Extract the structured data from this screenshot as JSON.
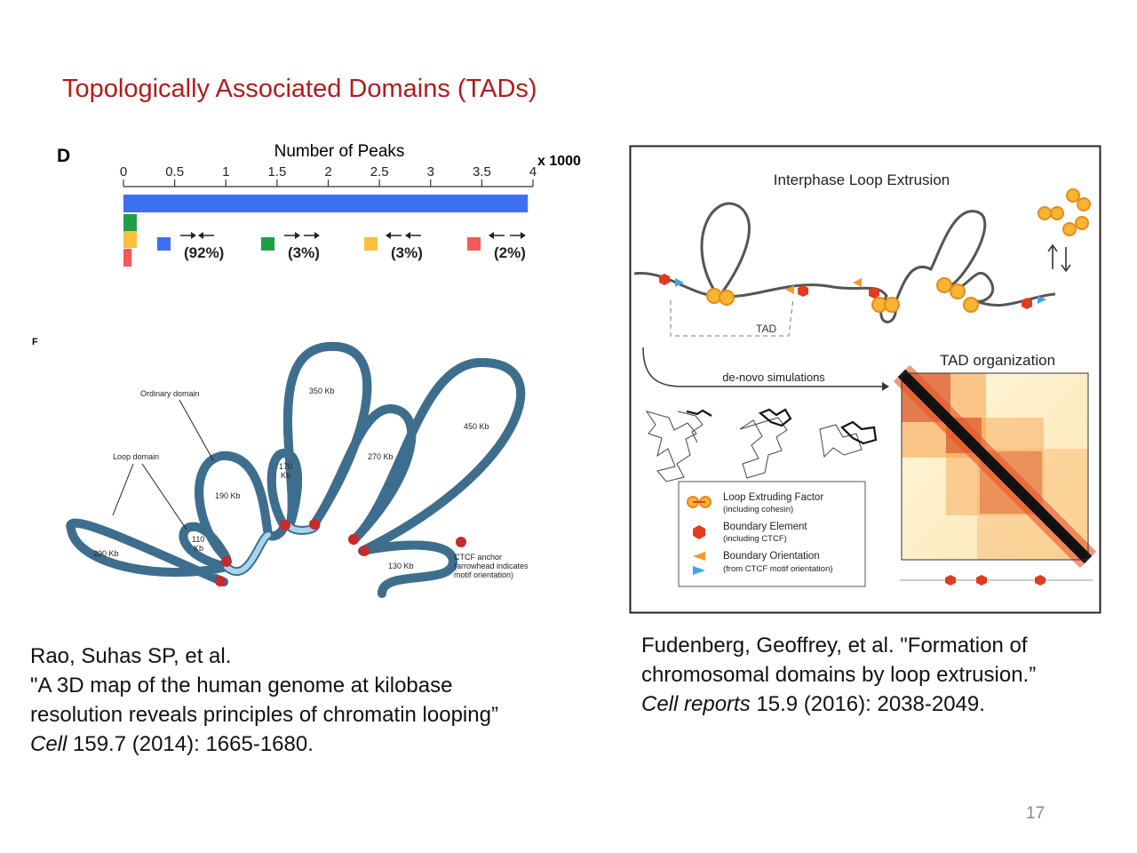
{
  "slide": {
    "title": "Topologically Associated Domains (TADs)",
    "page_number": "17"
  },
  "figure_d": {
    "panel_label": "D",
    "axis_title": "Number of Peaks",
    "axis_unit": "x 1000",
    "ticks": [
      "0",
      "0.5",
      "1",
      "1.5",
      "2",
      "2.5",
      "3",
      "3.5",
      "4"
    ],
    "legend": [
      {
        "percent": "(92%)",
        "color": "#3e6ff0"
      },
      {
        "percent": "(3%)",
        "color": "#1f9e4a"
      },
      {
        "percent": "(3%)",
        "color": "#fbbf3b"
      },
      {
        "percent": "(2%)",
        "color": "#f05a5a"
      }
    ]
  },
  "chart_data": {
    "type": "bar",
    "title": "Number of Peaks",
    "xlabel": "x 1000",
    "ylabel": "",
    "xlim": [
      0,
      4
    ],
    "categories": [
      "(92%)",
      "(3%)",
      "(3%)",
      "(2%)"
    ],
    "values": [
      3.95,
      0.13,
      0.13,
      0.08
    ],
    "orientation": "horizontal"
  },
  "figure_f": {
    "panel_label": "F",
    "labels": {
      "ordinary_domain": "Ordinary domain",
      "loop_domain": "Loop domain",
      "kb290": "290 Kb",
      "kb110a": "110",
      "kb110b": "Kb",
      "kb190": "190 Kb",
      "kb170a": "170",
      "kb170b": "Kb",
      "kb350": "350 Kb",
      "kb270": "270 Kb",
      "kb450": "450 Kb",
      "kb130": "130 Kb",
      "ctcf1": "CTCF anchor",
      "ctcf2": "(arrowhead indicates",
      "ctcf3": "motif orientation)"
    }
  },
  "figure_r": {
    "title": "Interphase Loop Extrusion",
    "tad_label": "TAD",
    "simulations": "de-novo simulations",
    "tad_org": "TAD organization",
    "legend": {
      "lef": "Loop Extruding Factor",
      "lef_sub": "(including cohesin)",
      "be": "Boundary Element",
      "be_sub": "(including CTCF)",
      "bo": "Boundary Orientation",
      "bo_sub": "(from CTCF motif orientation)"
    }
  },
  "citations": {
    "left": {
      "line1": "Rao, Suhas SP, et al.",
      "line2": "\"A 3D map of the human genome at kilobase",
      "line3": "resolution reveals principles of chromatin looping”",
      "journal": "Cell",
      "rest": " 159.7 (2014): 1665-1680."
    },
    "right": {
      "line1": "Fudenberg, Geoffrey, et al. \"Formation of",
      "line2": "chromosomal domains by loop extrusion.”",
      "journal": "Cell reports",
      "rest": " 15.9 (2016): 2038-2049."
    }
  }
}
